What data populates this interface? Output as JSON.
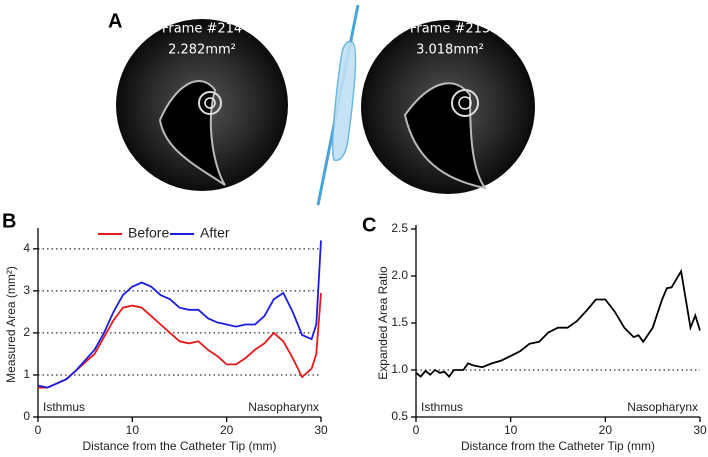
{
  "panel_labels": [
    "A",
    "B",
    "C"
  ],
  "images": [
    {
      "frame": "Frame #214",
      "area": "2.282mm²"
    },
    {
      "frame": "Frame #213",
      "area": "3.018mm²"
    }
  ],
  "chart_data": [
    {
      "type": "line",
      "x_label": "Distance from the Catheter Tip (mm)",
      "y_label": "Measured Area (mm²)",
      "x": [
        0,
        1,
        2,
        3,
        4,
        5,
        6,
        7,
        8,
        9,
        10,
        11,
        12,
        13,
        14,
        15,
        16,
        17,
        18,
        19,
        20,
        21,
        22,
        23,
        24,
        25,
        26,
        27,
        28,
        29,
        29.5,
        30
      ],
      "series": [
        {
          "name": "Before",
          "color": "#e8191b",
          "values": [
            0.7,
            0.7,
            0.8,
            0.9,
            1.1,
            1.3,
            1.5,
            1.9,
            2.3,
            2.6,
            2.65,
            2.6,
            2.4,
            2.2,
            2.0,
            1.8,
            1.75,
            1.8,
            1.6,
            1.45,
            1.25,
            1.25,
            1.4,
            1.6,
            1.75,
            2.0,
            1.8,
            1.4,
            0.95,
            1.15,
            1.5,
            2.95
          ]
        },
        {
          "name": "After",
          "color": "#1a1ee0",
          "values": [
            0.75,
            0.7,
            0.8,
            0.9,
            1.1,
            1.35,
            1.6,
            2.0,
            2.5,
            2.9,
            3.1,
            3.2,
            3.1,
            2.9,
            2.8,
            2.6,
            2.55,
            2.55,
            2.35,
            2.25,
            2.2,
            2.15,
            2.2,
            2.2,
            2.4,
            2.8,
            2.95,
            2.5,
            1.95,
            1.85,
            2.2,
            4.2
          ]
        }
      ],
      "xlim": [
        0,
        30
      ],
      "xticks": [
        0,
        10,
        20,
        30
      ],
      "ylim": [
        0,
        4.4
      ],
      "yticks": [
        0,
        1,
        2,
        3,
        4
      ],
      "grid": true,
      "legend": "top",
      "annotations": [
        "Isthmus",
        "Nasopharynx"
      ]
    },
    {
      "type": "line",
      "x_label": "Distance from the Catheter Tip (mm)",
      "y_label": "Expanded Area Ratio",
      "x": [
        0,
        0.5,
        1,
        1.5,
        2,
        2.5,
        3,
        3.5,
        4,
        5,
        5.5,
        6,
        7,
        8,
        9,
        10,
        11,
        12,
        13,
        14,
        15,
        16,
        17,
        18,
        19,
        20,
        21,
        22,
        23,
        23.5,
        24,
        25,
        26,
        26.5,
        27,
        28,
        29,
        29.5,
        30
      ],
      "series": [
        {
          "name": null,
          "color": "#000000",
          "values": [
            0.97,
            0.93,
            0.99,
            0.95,
            1.0,
            0.97,
            0.98,
            0.93,
            1.0,
            1.0,
            1.07,
            1.05,
            1.03,
            1.07,
            1.1,
            1.15,
            1.2,
            1.28,
            1.3,
            1.4,
            1.45,
            1.45,
            1.52,
            1.63,
            1.75,
            1.75,
            1.62,
            1.45,
            1.35,
            1.37,
            1.3,
            1.45,
            1.75,
            1.87,
            1.88,
            2.05,
            1.45,
            1.58,
            1.42
          ]
        }
      ],
      "xlim": [
        0,
        30
      ],
      "xticks": [
        0,
        10,
        20,
        30
      ],
      "ylim": [
        0.5,
        2.5
      ],
      "yticks": [
        0.5,
        {
          "value": 1,
          "label": "1.0"
        },
        1.5,
        {
          "value": 2,
          "label": "2.0"
        },
        2.5
      ],
      "reference_line": 1,
      "annotations": [
        "Isthmus",
        "Nasopharynx"
      ]
    }
  ]
}
